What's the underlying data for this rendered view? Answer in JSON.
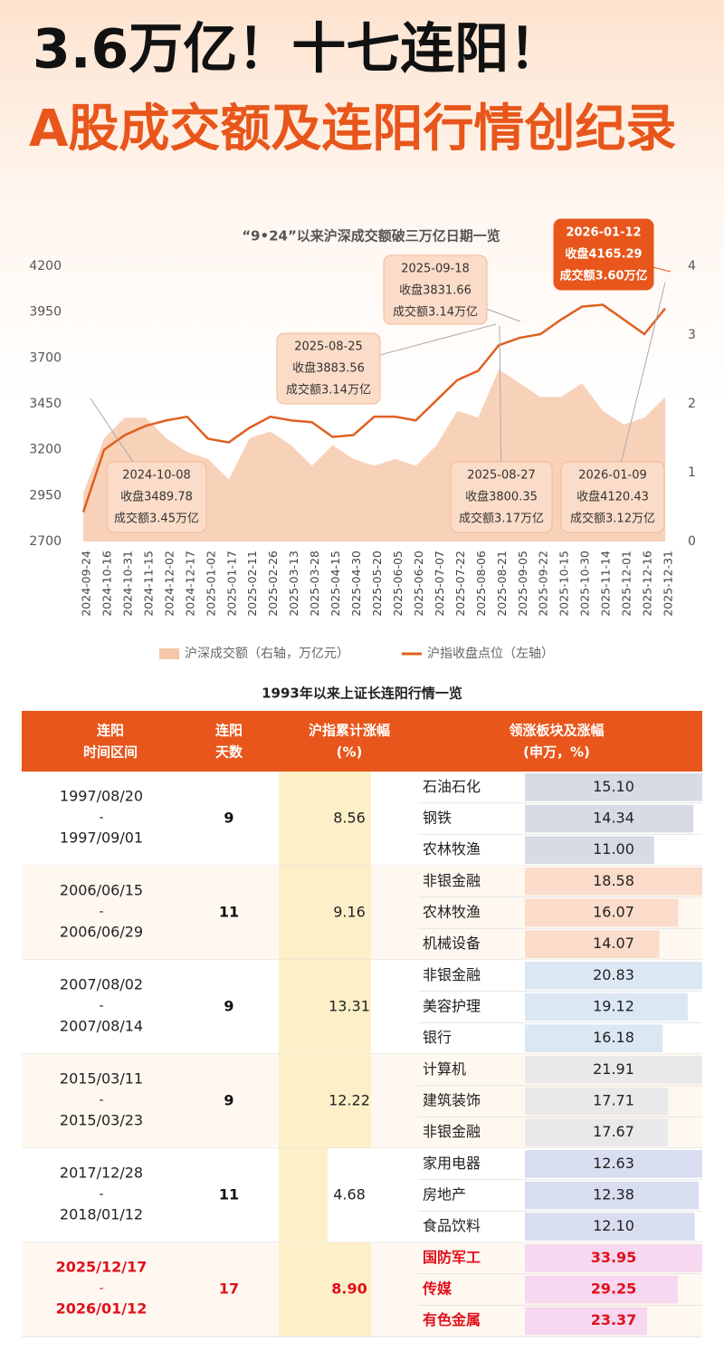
{
  "header": {
    "title": "3.6万亿！十七连阳！",
    "subtitle": "A股成交额及连阳行情创纪录"
  },
  "chart_data": {
    "type": "line",
    "title": "“9•24”以来沪深成交额破三万亿日期一览",
    "categories": [
      "2024-09-24",
      "2024-10-16",
      "2024-10-31",
      "2024-11-15",
      "2024-12-02",
      "2024-12-17",
      "2025-01-02",
      "2025-01-17",
      "2025-02-11",
      "2025-02-26",
      "2025-03-13",
      "2025-03-28",
      "2025-04-15",
      "2025-04-30",
      "2025-05-20",
      "2025-06-05",
      "2025-06-20",
      "2025-07-07",
      "2025-07-22",
      "2025-08-06",
      "2025-08-21",
      "2025-09-05",
      "2025-09-22",
      "2025-10-15",
      "2025-10-30",
      "2025-11-14",
      "2025-12-01",
      "2025-12-16",
      "2025-12-31"
    ],
    "series": [
      {
        "name": "沪深成交额（右轴，万亿元）",
        "color": "#f6c6a8",
        "axis": "y2",
        "kind": "area",
        "values": [
          0.7,
          1.5,
          1.8,
          1.8,
          1.5,
          1.3,
          1.2,
          0.9,
          1.5,
          1.6,
          1.4,
          1.1,
          1.4,
          1.2,
          1.1,
          1.2,
          1.1,
          1.4,
          1.9,
          1.8,
          2.5,
          2.3,
          2.1,
          2.1,
          2.3,
          1.9,
          1.7,
          1.8,
          2.1
        ]
      },
      {
        "name": "沪指收盘点位（左轴）",
        "color": "#e0601f",
        "kind": "line",
        "values": [
          2860,
          3200,
          3280,
          3330,
          3360,
          3380,
          3260,
          3240,
          3320,
          3380,
          3360,
          3350,
          3270,
          3280,
          3380,
          3380,
          3360,
          3470,
          3580,
          3630,
          3770,
          3810,
          3830,
          3910,
          3980,
          3990,
          3910,
          3830,
          3970
        ]
      }
    ],
    "ylim": [
      2700,
      4200
    ],
    "yticks": [
      2700,
      2950,
      3200,
      3450,
      3700,
      3950,
      4200
    ],
    "y2lim": [
      0,
      4
    ],
    "y2ticks": [
      0,
      1,
      2,
      3,
      4
    ],
    "annotations": [
      {
        "lines": [
          "2024-10-08",
          "收盘3489.78",
          "成交额3.45万亿"
        ]
      },
      {
        "lines": [
          "2025-08-25",
          "收盘3883.56",
          "成交额3.14万亿"
        ]
      },
      {
        "lines": [
          "2025-09-18",
          "收盘3831.66",
          "成交额3.14万亿"
        ]
      },
      {
        "lines": [
          "2025-08-27",
          "收盘3800.35",
          "成交额3.17万亿"
        ]
      },
      {
        "lines": [
          "2026-01-09",
          "收盘4120.43",
          "成交额3.12万亿"
        ]
      },
      {
        "lines": [
          "2026-01-12",
          "收盘4165.29",
          "成交额3.60万亿"
        ]
      }
    ]
  },
  "table": {
    "title": "1993年以来上证长连阳行情一览",
    "headers": [
      [
        "连阳",
        "时间区间"
      ],
      [
        "连阳",
        "天数"
      ],
      [
        "沪指累计涨幅",
        "(%)"
      ],
      [
        "领涨板块及涨幅",
        "(申万，%)"
      ]
    ],
    "rows": [
      {
        "start": "1997/08/20",
        "sep": "-",
        "end": "1997/09/01",
        "days": "9",
        "pct": "8.56",
        "sectors": [
          [
            "石油石化",
            "15.10"
          ],
          [
            "钢铁",
            "14.34"
          ],
          [
            "农林牧渔",
            "11.00"
          ]
        ]
      },
      {
        "start": "2006/06/15",
        "sep": "-",
        "end": "2006/06/29",
        "days": "11",
        "pct": "9.16",
        "sectors": [
          [
            "非银金融",
            "18.58"
          ],
          [
            "农林牧渔",
            "16.07"
          ],
          [
            "机械设备",
            "14.07"
          ]
        ]
      },
      {
        "start": "2007/08/02",
        "sep": "-",
        "end": "2007/08/14",
        "days": "9",
        "pct": "13.31",
        "sectors": [
          [
            "非银金融",
            "20.83"
          ],
          [
            "美容护理",
            "19.12"
          ],
          [
            "银行",
            "16.18"
          ]
        ]
      },
      {
        "start": "2015/03/11",
        "sep": "-",
        "end": "2015/03/23",
        "days": "9",
        "pct": "12.22",
        "sectors": [
          [
            "计算机",
            "21.91"
          ],
          [
            "建筑装饰",
            "17.71"
          ],
          [
            "非银金融",
            "17.67"
          ]
        ]
      },
      {
        "start": "2017/12/28",
        "sep": "-",
        "end": "2018/01/12",
        "days": "11",
        "pct": "4.68",
        "sectors": [
          [
            "家用电器",
            "12.63"
          ],
          [
            "房地产",
            "12.38"
          ],
          [
            "食品饮料",
            "12.10"
          ]
        ]
      },
      {
        "start": "2025/12/17",
        "sep": "-",
        "end": "2026/01/12",
        "days": "17",
        "pct": "8.90",
        "sectors": [
          [
            "国防军工",
            "33.95"
          ],
          [
            "传媒",
            "29.25"
          ],
          [
            "有色金属",
            "23.37"
          ]
        ]
      }
    ]
  }
}
